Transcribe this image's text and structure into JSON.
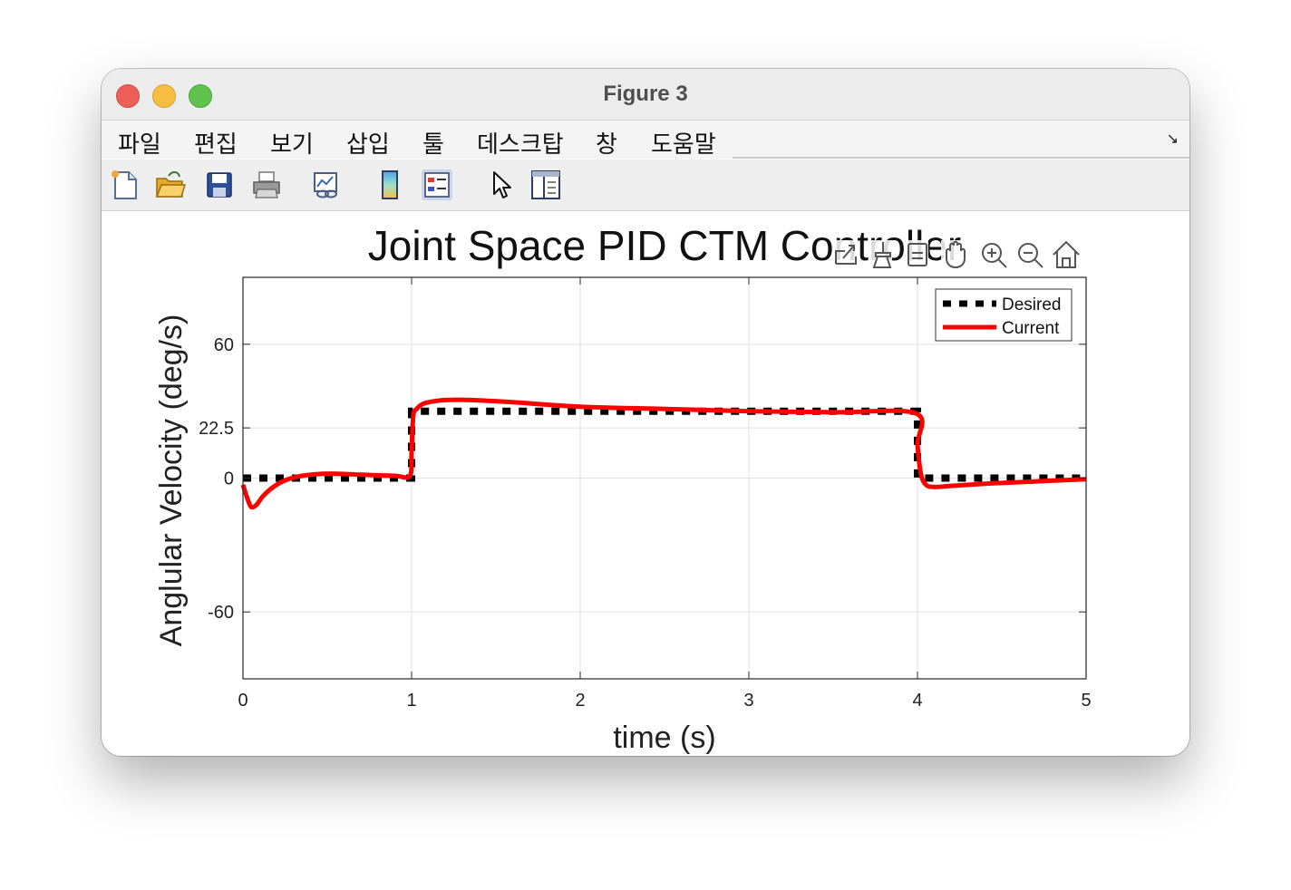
{
  "window": {
    "title": "Figure 3"
  },
  "menu": {
    "items": [
      "파일",
      "편집",
      "보기",
      "삽입",
      "툴",
      "데스크탑",
      "창",
      "도움말"
    ],
    "overflow_arrow": "↘"
  },
  "toolbar": {
    "icons": [
      "new-file-icon",
      "open-folder-icon",
      "save-disk-icon",
      "print-icon",
      "link-plot-icon",
      "colorbar-icon",
      "legend-icon",
      "pointer-arrow-icon",
      "property-editor-icon"
    ]
  },
  "axes_toolbar": {
    "icons": [
      "export-icon",
      "brush-icon",
      "data-tips-icon",
      "pan-hand-icon",
      "zoom-in-icon",
      "zoom-out-icon",
      "home-icon"
    ]
  },
  "colors": {
    "desired": "#000000",
    "current": "#ff0000",
    "grid": "#e2e2e2"
  },
  "chart_data": {
    "type": "line",
    "title": "Joint Space PID CTM Controller",
    "xlabel": "time (s)",
    "ylabel": "Anglular Velocity (deg/s)",
    "xlim": [
      0,
      5
    ],
    "ylim": [
      -90,
      90
    ],
    "xticks": [
      0,
      1,
      2,
      3,
      4,
      5
    ],
    "xtick_labels": [
      "0",
      "1",
      "2",
      "3",
      "4",
      "5"
    ],
    "yticks": [
      -60,
      0,
      22.5,
      60
    ],
    "ytick_labels": [
      "-60",
      "0",
      "22.5",
      "60"
    ],
    "grid": true,
    "legend_position": "top-right",
    "series": [
      {
        "name": "Desired",
        "style": "dotted",
        "color": "#000000",
        "x": [
          0,
          1,
          1,
          4,
          4,
          5
        ],
        "y": [
          0,
          0,
          30,
          30,
          0,
          0
        ]
      },
      {
        "name": "Current",
        "style": "solid",
        "color": "#ff0000",
        "x": [
          0,
          0.03,
          0.05,
          0.08,
          0.12,
          0.18,
          0.25,
          0.35,
          0.5,
          0.7,
          0.9,
          0.99,
          1.0,
          1.01,
          1.03,
          1.06,
          1.1,
          1.2,
          1.35,
          1.6,
          2.0,
          2.5,
          3.0,
          3.5,
          3.99,
          4.0,
          4.02,
          4.05,
          4.1,
          4.2,
          4.4,
          4.7,
          5.0
        ],
        "y": [
          -3,
          -10,
          -13,
          -12,
          -8,
          -4,
          -1,
          1,
          2,
          1.5,
          1,
          1,
          12,
          28,
          31,
          33,
          34,
          35,
          35,
          34,
          32,
          31,
          30,
          29.5,
          29,
          15,
          2,
          -3,
          -4,
          -3.5,
          -2.5,
          -1.5,
          -0.5
        ]
      }
    ]
  }
}
